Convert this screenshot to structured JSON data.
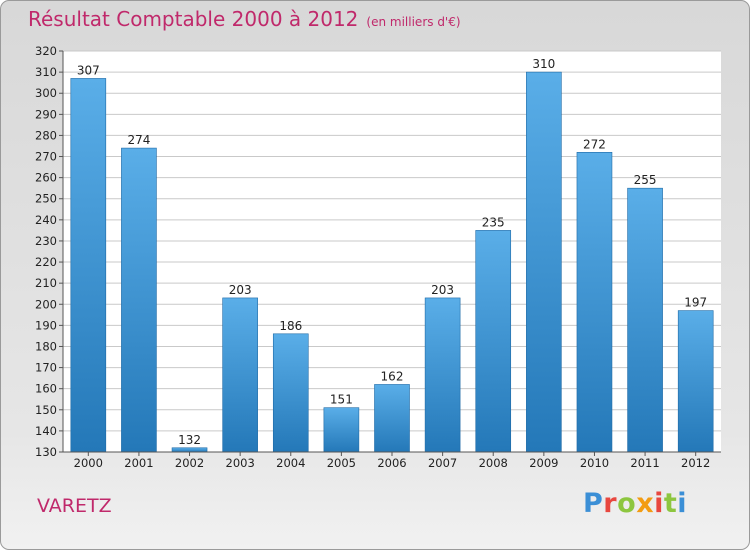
{
  "header": {
    "title": "Résultat Comptable 2000 à 2012",
    "unit": "(en milliers d'€)"
  },
  "footer": {
    "place": "VARETZ",
    "logo_letters": [
      "P",
      "r",
      "o",
      "x",
      "i",
      "t",
      "i"
    ],
    "logo_colors": [
      "#3b8fd6",
      "#e8473f",
      "#8dc63f",
      "#f39c12",
      "#e8473f",
      "#8dc63f",
      "#3b8fd6"
    ]
  },
  "colors": {
    "bar_top": "#5aaee8",
    "bar_bottom": "#2478b8",
    "title": "#c0296b",
    "grid": "#c9c9c9"
  },
  "chart_data": {
    "type": "bar",
    "title": "Résultat Comptable 2000 à 2012",
    "xlabel": "",
    "ylabel": "en milliers d'€",
    "categories": [
      "2000",
      "2001",
      "2002",
      "2003",
      "2004",
      "2005",
      "2006",
      "2007",
      "2008",
      "2009",
      "2010",
      "2011",
      "2012"
    ],
    "values": [
      307,
      274,
      132,
      203,
      186,
      151,
      162,
      203,
      235,
      310,
      272,
      255,
      197
    ],
    "ylim": [
      130,
      320
    ],
    "yticks": [
      130,
      140,
      150,
      160,
      170,
      180,
      190,
      200,
      210,
      220,
      230,
      240,
      250,
      260,
      270,
      280,
      290,
      300,
      310,
      320
    ],
    "grid": true
  }
}
